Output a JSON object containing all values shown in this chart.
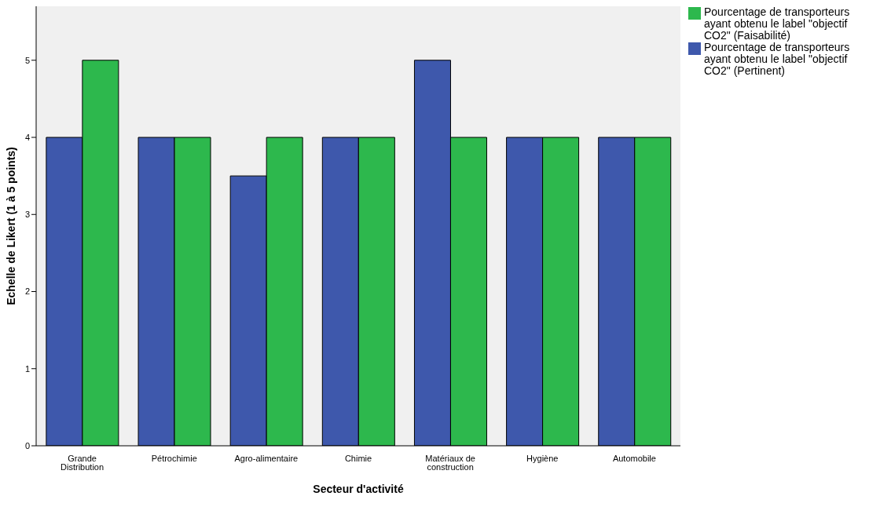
{
  "chart_data": {
    "type": "bar",
    "xlabel": "Secteur d'activité",
    "ylabel": "Echelle de Likert (1 à 5 points)",
    "categories": [
      "Grande Distribution",
      "Pétrochimie",
      "Agro-alimentaire",
      "Chimie",
      "Matériaux de construction",
      "Hygiène",
      "Automobile"
    ],
    "series": [
      {
        "name": "Pourcentage de transporteurs ayant obtenu le label \"objectif CO2\" (Pertinent)",
        "color": "#3e58ac",
        "values": [
          4,
          4,
          3.5,
          4,
          5,
          4,
          4
        ]
      },
      {
        "name": "Pourcentage de transporteurs ayant obtenu le label \"objectif CO2\" (Faisabilité)",
        "color": "#2db84d",
        "values": [
          5,
          4,
          4,
          4,
          4,
          4,
          4
        ]
      }
    ],
    "ylim": [
      0,
      5.7
    ],
    "yticks": [
      0,
      1,
      2,
      3,
      4,
      5
    ],
    "legend": "top right"
  }
}
